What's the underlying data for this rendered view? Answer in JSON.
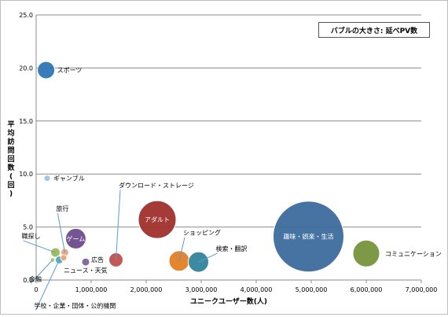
{
  "chart_data": {
    "type": "bubble",
    "note": "バブルの大きさ: 延べPV数",
    "xlabel": "ユニークユーザー数(人)",
    "ylabel": "平均訪問回数(回)",
    "xlim": [
      0,
      7000000
    ],
    "ylim": [
      0,
      25
    ],
    "x_ticks": [
      "0",
      "1,000,000",
      "2,000,000",
      "3,000,000",
      "4,000,000",
      "5,000,000",
      "6,000,000",
      "7,000,000"
    ],
    "y_ticks": [
      "0.0",
      "5.0",
      "10.0",
      "15.0",
      "20.0",
      "25.0"
    ],
    "grid": "horizontal",
    "points": [
      {
        "label": "スポーツ",
        "x": 180000,
        "y": 19.8,
        "size": 11,
        "color": "#2e75b6"
      },
      {
        "label": "ギャンブル",
        "x": 200000,
        "y": 9.6,
        "size": 4,
        "color": "#9dc3e6"
      },
      {
        "label": "ダウンロード・ストレージ",
        "x": 1450000,
        "y": 1.9,
        "size": 9,
        "color": "#c0504d"
      },
      {
        "label": "アダルト",
        "x": 2200000,
        "y": 5.7,
        "size": 24,
        "color": "#a0302b"
      },
      {
        "label": "ショッピング",
        "x": 2600000,
        "y": 1.8,
        "size": 13,
        "color": "#e07f24"
      },
      {
        "label": "検索・翻訳",
        "x": 2950000,
        "y": 1.7,
        "size": 13,
        "color": "#31849b"
      },
      {
        "label": "趣味・娯楽・生活",
        "x": 4950000,
        "y": 4.1,
        "size": 45,
        "color": "#3d6b9e"
      },
      {
        "label": "コミュニケーション",
        "x": 6000000,
        "y": 2.5,
        "size": 17,
        "color": "#77933c"
      },
      {
        "label": "ゲーム",
        "x": 720000,
        "y": 3.9,
        "size": 13,
        "color": "#6b4c8c"
      },
      {
        "label": "旅行",
        "x": 520000,
        "y": 2.6,
        "size": 5,
        "color": "#e6a57f"
      },
      {
        "label": "職探し",
        "x": 350000,
        "y": 2.6,
        "size": 6,
        "color": "#9bbb59"
      },
      {
        "label": "広告",
        "x": 900000,
        "y": 1.7,
        "size": 5,
        "color": "#8064a2"
      },
      {
        "label": "ニュース・天気",
        "x": 500000,
        "y": 2.1,
        "size": 4,
        "color": "#f0a070"
      },
      {
        "label": "金融",
        "x": 300000,
        "y": 1.9,
        "size": 3,
        "color": "#b4d16a"
      },
      {
        "label": "学校・企業・団体・公的機関",
        "x": 420000,
        "y": 1.9,
        "size": 5,
        "color": "#4bacc6"
      }
    ]
  }
}
